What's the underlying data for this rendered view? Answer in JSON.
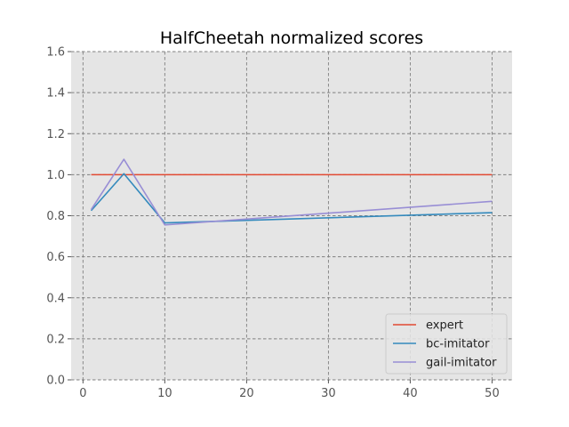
{
  "chart_data": {
    "type": "line",
    "title": "HalfCheetah normalized scores",
    "xlabel": "",
    "ylabel": "",
    "xlim": [
      -1.45,
      52.45
    ],
    "ylim": [
      0.0,
      1.6
    ],
    "xticks": [
      0,
      10,
      20,
      30,
      40,
      50
    ],
    "yticks": [
      0.0,
      0.2,
      0.4,
      0.6,
      0.8,
      1.0,
      1.2,
      1.4,
      1.6
    ],
    "xtick_labels": [
      "0",
      "10",
      "20",
      "30",
      "40",
      "50"
    ],
    "ytick_labels": [
      "0.0",
      "0.2",
      "0.4",
      "0.6",
      "0.8",
      "1.0",
      "1.2",
      "1.4",
      "1.6"
    ],
    "grid": true,
    "legend_position": "lower-right",
    "x": [
      1,
      5,
      10,
      50
    ],
    "series": [
      {
        "name": "expert",
        "color": "#e24a33",
        "values": [
          1.0,
          1.0,
          1.0,
          1.0
        ]
      },
      {
        "name": "bc-imitator",
        "color": "#348abd",
        "values": [
          0.825,
          1.005,
          0.765,
          0.815
        ]
      },
      {
        "name": "gail-imitator",
        "color": "#988ed5",
        "values": [
          0.83,
          1.075,
          0.755,
          0.87
        ]
      }
    ]
  }
}
